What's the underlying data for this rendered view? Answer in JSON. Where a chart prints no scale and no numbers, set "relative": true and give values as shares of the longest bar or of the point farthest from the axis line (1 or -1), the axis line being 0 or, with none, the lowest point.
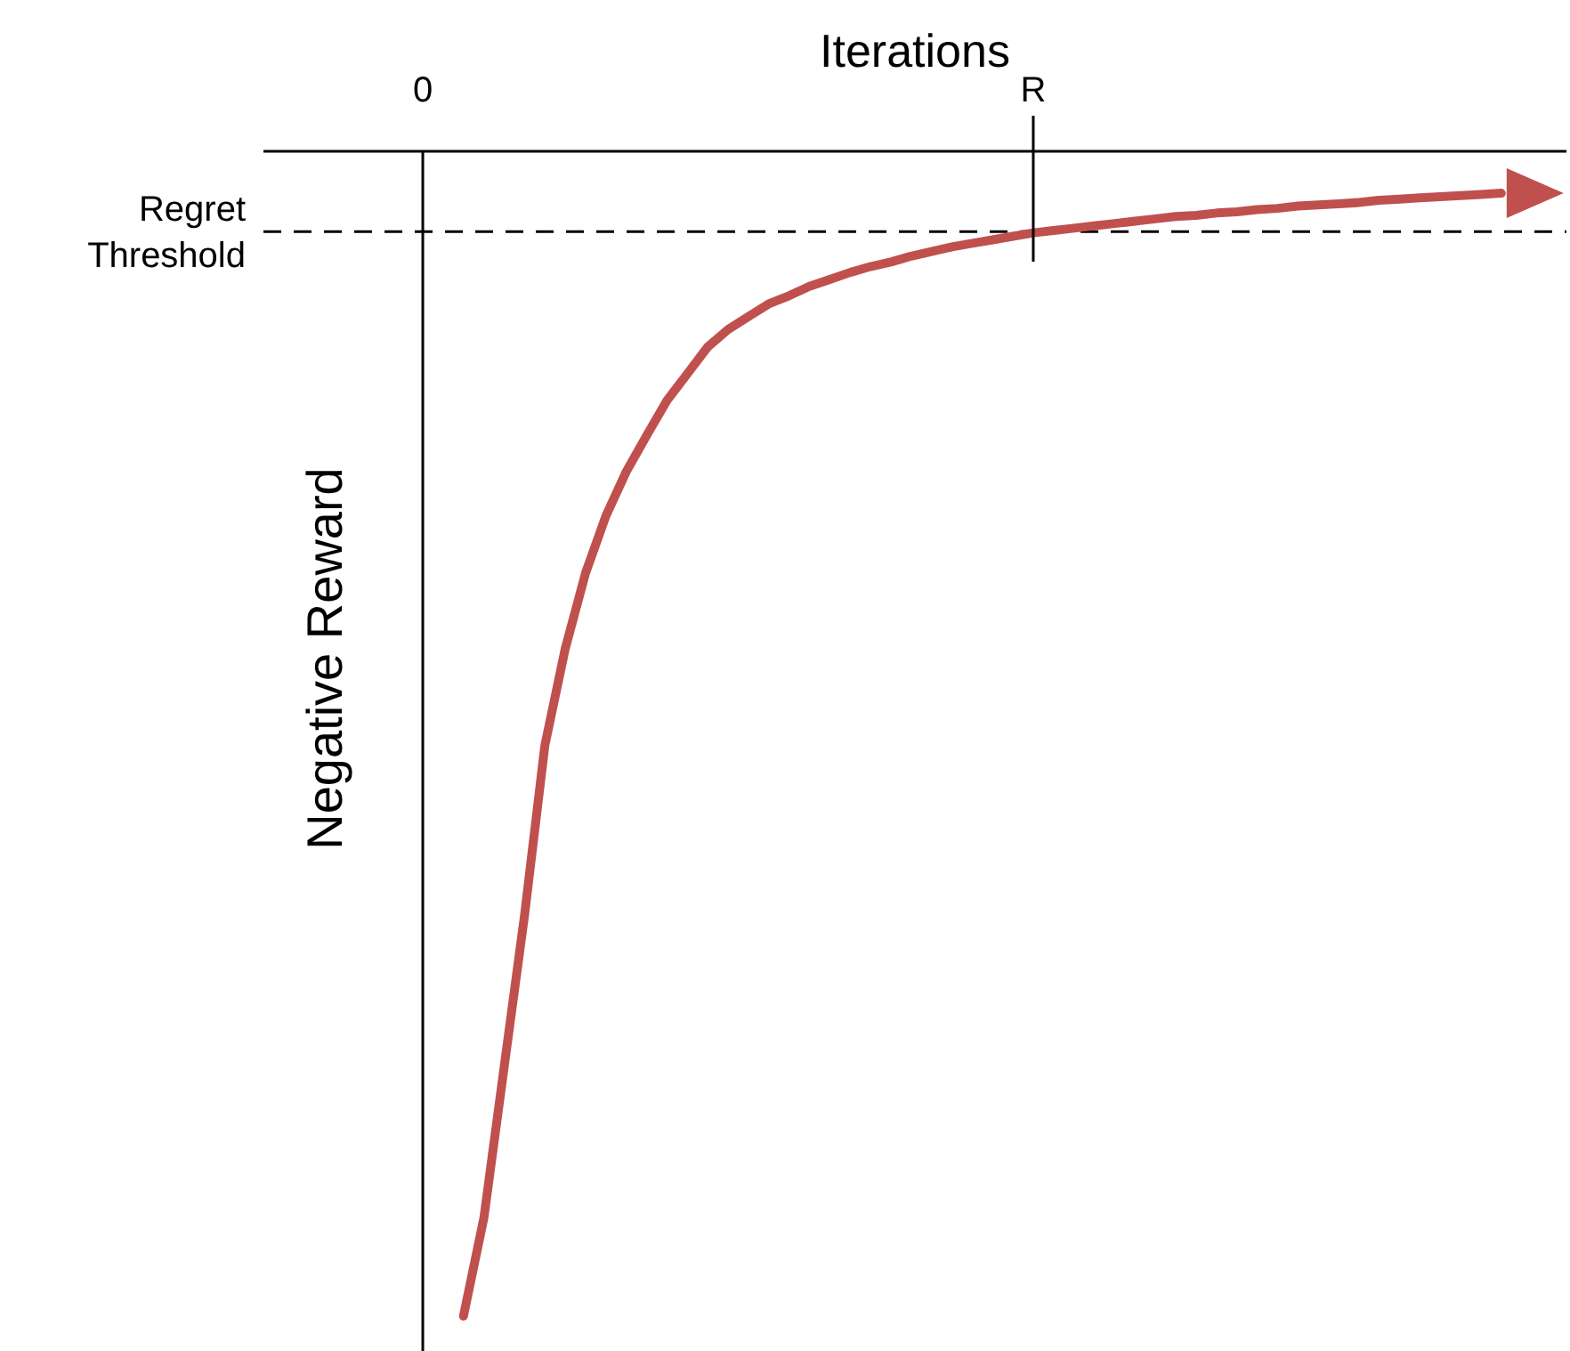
{
  "chart_data": {
    "type": "line",
    "xlabel": "Iterations",
    "ylabel": "Negative Reward",
    "relative": true,
    "categories": [
      "0",
      null,
      null,
      null,
      null,
      null,
      null,
      null,
      null,
      null,
      null,
      null,
      null,
      null,
      null,
      null,
      null,
      null,
      null,
      null,
      null,
      null,
      null,
      null,
      null,
      null,
      null,
      null,
      null,
      null,
      "R",
      null,
      null,
      null,
      null,
      null,
      null,
      null,
      null,
      null,
      null,
      null,
      null,
      null,
      null,
      null,
      null,
      null,
      null,
      null,
      null,
      null,
      null,
      null
    ],
    "series": [
      {
        "color": "#c0504d",
        "values": [
          null,
          null,
          -1,
          -0.916,
          -0.786,
          -0.656,
          -0.51,
          -0.427,
          -0.362,
          -0.313,
          -0.275,
          -0.244,
          -0.214,
          -0.191,
          -0.168,
          -0.153,
          -0.142,
          -0.131,
          -0.124,
          -0.116,
          -0.11,
          -0.104,
          -0.099,
          -0.095,
          -0.09,
          -0.086,
          -0.082,
          -0.079,
          -0.076,
          -0.073,
          -0.07,
          -0.068,
          -0.066,
          -0.064,
          -0.062,
          -0.06,
          -0.058,
          -0.056,
          -0.055,
          -0.053,
          -0.052,
          -0.05,
          -0.049,
          -0.047,
          -0.046,
          -0.045,
          -0.044,
          -0.042,
          -0.041,
          -0.04,
          -0.039,
          -0.038,
          -0.037,
          -0.036
        ]
      }
    ],
    "ref_lines": [
      {
        "axis": "y",
        "value": -0.069,
        "label": "Regret Threshold",
        "color": "#000000",
        "line_style": "dashed"
      }
    ],
    "grid": false,
    "legend": false
  }
}
